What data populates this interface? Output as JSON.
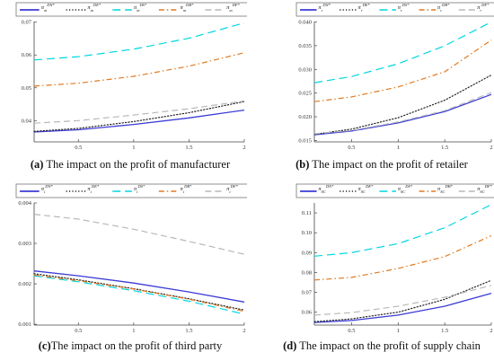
{
  "legend_names": [
    "DN*",
    "DE*",
    "DS*",
    "DB*",
    "DF*"
  ],
  "legend_colors": [
    "#3b3bd6",
    "#222222",
    "#00d6e0",
    "#e07a20",
    "#b8b8b8"
  ],
  "chart_data": [
    {
      "type": "line",
      "caption": {
        "label": "(a)",
        "text": " The impact on the profit of manufacturer"
      },
      "legend_sub": "m",
      "xlim": [
        0.1,
        2
      ],
      "ylim": [
        0.0335,
        0.0702
      ],
      "yticks": [
        0.04,
        0.05,
        0.06,
        0.07
      ],
      "ytick_labels": [
        "0.04",
        "0.05",
        "0.06",
        "0.07"
      ],
      "xticks": [
        0.5,
        1,
        1.5,
        2
      ],
      "xtick_labels": [
        "0.5",
        "1",
        "1.5",
        "2"
      ],
      "x": [
        0.1,
        0.5,
        1.0,
        1.5,
        2.0
      ],
      "series": [
        {
          "name": "DN*",
          "color": "#3b3bd6",
          "dash": "solid",
          "values": [
            0.0365,
            0.0372,
            0.0388,
            0.0408,
            0.0432
          ]
        },
        {
          "name": "DE*",
          "color": "#222222",
          "dash": "dot",
          "values": [
            0.0367,
            0.0376,
            0.0397,
            0.0424,
            0.0458
          ]
        },
        {
          "name": "DS*",
          "color": "#00d6e0",
          "dash": "longdash",
          "values": [
            0.0585,
            0.0595,
            0.0618,
            0.0651,
            0.0698
          ]
        },
        {
          "name": "DB*",
          "color": "#e07a20",
          "dash": "dashdot",
          "values": [
            0.0505,
            0.0514,
            0.0535,
            0.0566,
            0.0607
          ]
        },
        {
          "name": "DF*",
          "color": "#b8b8b8",
          "dash": "dash",
          "values": [
            0.0392,
            0.04,
            0.0417,
            0.0436,
            0.046
          ]
        }
      ]
    },
    {
      "type": "line",
      "caption": {
        "label": "(b)",
        "text": " The impact on the profit of retailer"
      },
      "legend_sub": "r",
      "xlim": [
        0.1,
        2
      ],
      "ylim": [
        0.0147,
        0.0401
      ],
      "yticks": [
        0.015,
        0.02,
        0.025,
        0.03,
        0.035,
        0.04
      ],
      "ytick_labels": [
        "0.015",
        "0.020",
        "0.025",
        "0.030",
        "0.035",
        "0.040"
      ],
      "xticks": [
        0.5,
        1,
        1.5,
        2
      ],
      "xtick_labels": [
        "0.5",
        "1",
        "1.5",
        "2"
      ],
      "x": [
        0.1,
        0.5,
        1.0,
        1.5,
        2.0
      ],
      "series": [
        {
          "name": "DN*",
          "color": "#3b3bd6",
          "dash": "solid",
          "values": [
            0.0162,
            0.017,
            0.0187,
            0.0211,
            0.0247
          ]
        },
        {
          "name": "DE*",
          "color": "#222222",
          "dash": "dot",
          "values": [
            0.0163,
            0.0174,
            0.0198,
            0.0235,
            0.0288
          ]
        },
        {
          "name": "DS*",
          "color": "#00d6e0",
          "dash": "longdash",
          "values": [
            0.0272,
            0.0285,
            0.0312,
            0.035,
            0.04
          ]
        },
        {
          "name": "DB*",
          "color": "#e07a20",
          "dash": "dashdot",
          "values": [
            0.0232,
            0.0242,
            0.0263,
            0.0295,
            0.0362
          ]
        },
        {
          "name": "DF*",
          "color": "#b8b8b8",
          "dash": "dash",
          "values": [
            0.0164,
            0.0171,
            0.0189,
            0.0213,
            0.0251
          ]
        }
      ]
    },
    {
      "type": "line",
      "caption": {
        "label": "(c)",
        "text": "The impact on the profit of third party"
      },
      "legend_sub": "t",
      "xlim": [
        0.1,
        2
      ],
      "ylim": [
        0.00098,
        0.004
      ],
      "yticks": [
        0.001,
        0.002,
        0.003,
        0.004
      ],
      "ytick_labels": [
        "0.001",
        "0.002",
        "0.003",
        "0.004"
      ],
      "xticks": [
        0.5,
        1,
        1.5,
        2
      ],
      "xtick_labels": [
        "0.5",
        "1",
        "1.5",
        "2"
      ],
      "x": [
        0.1,
        0.5,
        1.0,
        1.5,
        2.0
      ],
      "series": [
        {
          "name": "DN*",
          "color": "#3b3bd6",
          "dash": "solid",
          "values": [
            0.00232,
            0.0022,
            0.00202,
            0.0018,
            0.00155
          ]
        },
        {
          "name": "DE*",
          "color": "#222222",
          "dash": "dot",
          "values": [
            0.00225,
            0.0021,
            0.00188,
            0.00163,
            0.00135
          ]
        },
        {
          "name": "DS*",
          "color": "#00d6e0",
          "dash": "longdash",
          "values": [
            0.0022,
            0.00205,
            0.00183,
            0.00157,
            0.00125
          ]
        },
        {
          "name": "DB*",
          "color": "#e07a20",
          "dash": "dashdot",
          "values": [
            0.00222,
            0.00208,
            0.00187,
            0.00162,
            0.00132
          ]
        },
        {
          "name": "DF*",
          "color": "#b8b8b8",
          "dash": "dash",
          "values": [
            0.00372,
            0.0036,
            0.00335,
            0.00305,
            0.00273
          ]
        }
      ]
    },
    {
      "type": "line",
      "caption": {
        "label": "(d)",
        "text": " The impact on the profit of supply chain"
      },
      "legend_sub": "SC",
      "xlim": [
        0.1,
        2
      ],
      "ylim": [
        0.0535,
        0.115
      ],
      "yticks": [
        0.06,
        0.07,
        0.08,
        0.09,
        0.1,
        0.11
      ],
      "ytick_labels": [
        "0.06",
        "0.07",
        "0.08",
        "0.09",
        "0.10",
        "0.11"
      ],
      "xticks": [
        0.5,
        1,
        1.5,
        2
      ],
      "xtick_labels": [
        "0.5",
        "1",
        "1.5",
        "2"
      ],
      "x": [
        0.1,
        0.5,
        1.0,
        1.5,
        2.0
      ],
      "series": [
        {
          "name": "DN*",
          "color": "#3b3bd6",
          "dash": "solid",
          "values": [
            0.0548,
            0.0558,
            0.0585,
            0.063,
            0.0695
          ]
        },
        {
          "name": "DE*",
          "color": "#222222",
          "dash": "dot",
          "values": [
            0.0552,
            0.0566,
            0.06,
            0.0665,
            0.076
          ]
        },
        {
          "name": "DS*",
          "color": "#00d6e0",
          "dash": "longdash",
          "values": [
            0.0882,
            0.09,
            0.0945,
            0.1025,
            0.1142
          ]
        },
        {
          "name": "DB*",
          "color": "#e07a20",
          "dash": "dashdot",
          "values": [
            0.0762,
            0.0775,
            0.082,
            0.088,
            0.0985
          ]
        },
        {
          "name": "DF*",
          "color": "#b8b8b8",
          "dash": "dash",
          "values": [
            0.0585,
            0.0598,
            0.063,
            0.0675,
            0.0735
          ]
        }
      ]
    }
  ]
}
